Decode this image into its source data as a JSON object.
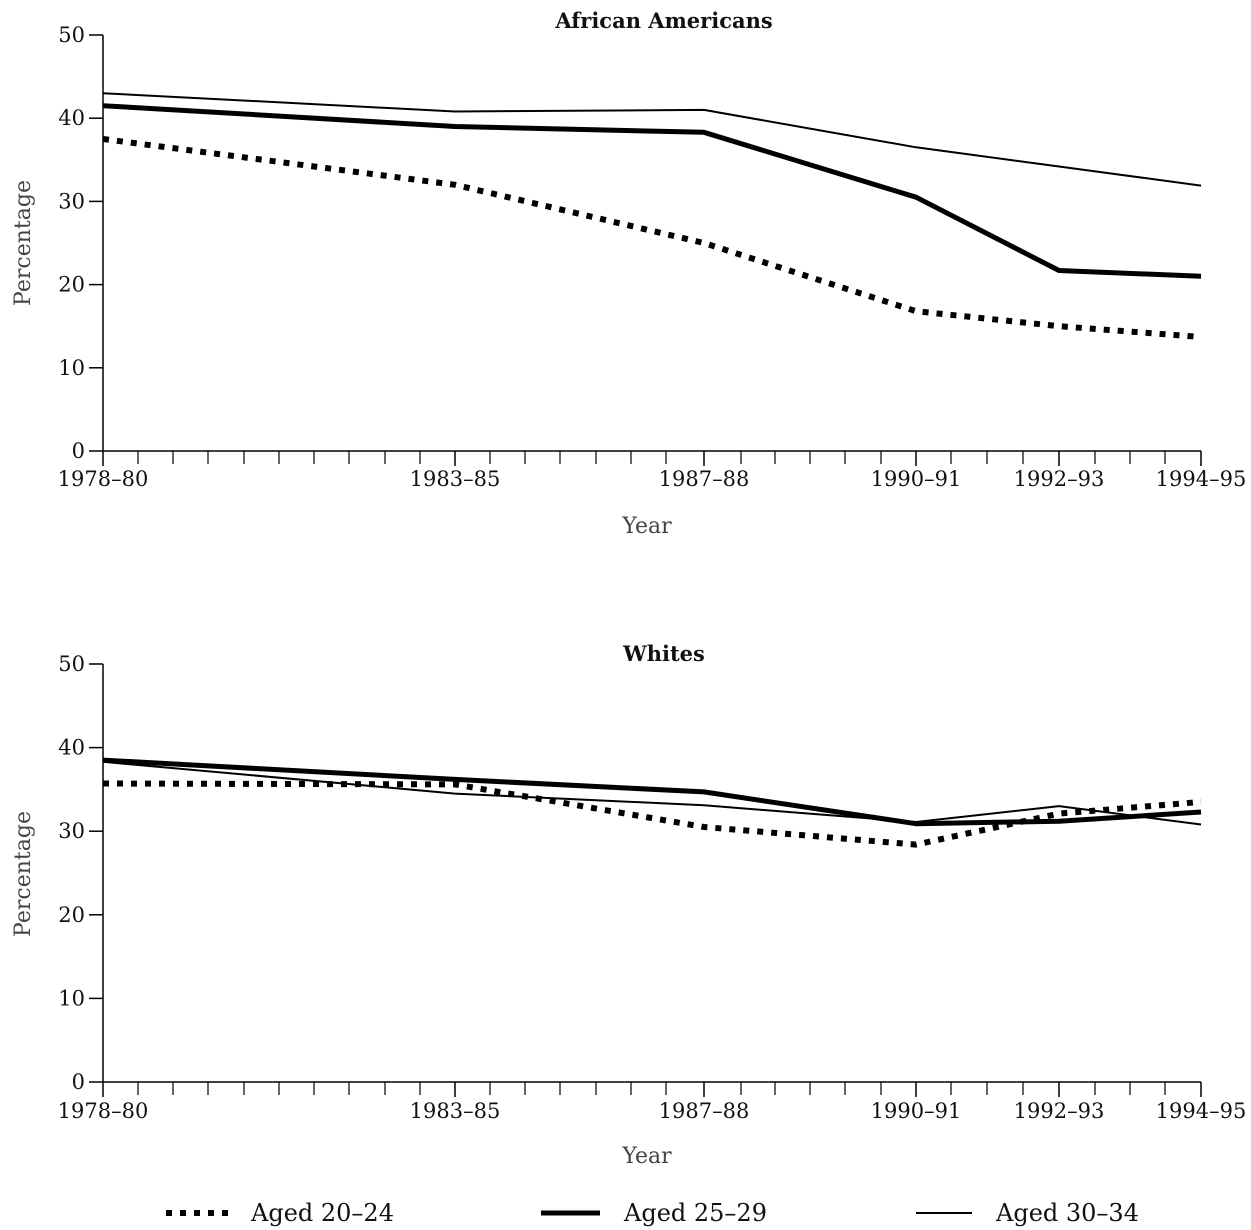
{
  "chart_data": [
    {
      "type": "line",
      "title": "African Americans",
      "xlabel": "Year",
      "ylabel": "Percentage",
      "x": [
        "1978–80",
        "1983–85",
        "1987–88",
        "1990–91",
        "1992–93",
        "1994–95"
      ],
      "ylim": [
        0,
        50
      ],
      "y_ticks": [
        "0",
        "10",
        "20",
        "30",
        "40",
        "50"
      ],
      "grid": false,
      "series": [
        {
          "name": "Aged 20–24",
          "values": [
            37.5,
            32.0,
            25.0,
            16.8,
            15.0,
            13.7
          ]
        },
        {
          "name": "Aged 25–29",
          "values": [
            41.5,
            39.0,
            38.3,
            30.5,
            21.7,
            21.0
          ]
        },
        {
          "name": "Aged 30–34",
          "values": [
            43.0,
            40.8,
            41.0,
            36.5,
            34.2,
            31.9
          ]
        }
      ]
    },
    {
      "type": "line",
      "title": "Whites",
      "xlabel": "Year",
      "ylabel": "Percentage",
      "x": [
        "1978–80",
        "1983–85",
        "1987–88",
        "1990–91",
        "1992–93",
        "1994–95"
      ],
      "ylim": [
        0,
        50
      ],
      "y_ticks": [
        "0",
        "10",
        "20",
        "30",
        "40",
        "50"
      ],
      "grid": false,
      "series": [
        {
          "name": "Aged 20–24",
          "values": [
            35.7,
            35.6,
            30.5,
            28.4,
            32.1,
            33.5
          ]
        },
        {
          "name": "Aged 25–29",
          "values": [
            38.5,
            36.2,
            34.7,
            30.9,
            31.2,
            32.3
          ]
        },
        {
          "name": "Aged 30–34",
          "values": [
            38.3,
            34.5,
            33.1,
            31.1,
            33.0,
            30.8
          ]
        }
      ]
    }
  ],
  "legend": {
    "placement": "bottom",
    "items": [
      {
        "label": "Aged 20–24",
        "style": "dotted-thick"
      },
      {
        "label": "Aged 25–29",
        "style": "solid-thick"
      },
      {
        "label": "Aged 30–34",
        "style": "solid-thin"
      }
    ]
  },
  "colors": {
    "line": "#000000",
    "text": "#111111",
    "axis_title": "#444444"
  }
}
